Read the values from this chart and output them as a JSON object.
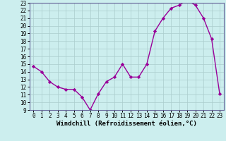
{
  "x": [
    0,
    1,
    2,
    3,
    4,
    5,
    6,
    7,
    8,
    9,
    10,
    11,
    12,
    13,
    14,
    15,
    16,
    17,
    18,
    19,
    20,
    21,
    22,
    23
  ],
  "y": [
    14.7,
    14.0,
    12.7,
    12.0,
    11.7,
    11.7,
    10.7,
    9.0,
    11.1,
    12.7,
    13.3,
    15.0,
    13.3,
    13.3,
    15.0,
    19.3,
    21.0,
    22.3,
    22.7,
    23.3,
    22.7,
    21.0,
    18.3,
    11.1
  ],
  "line_color": "#990099",
  "marker_color": "#990099",
  "bg_color": "#cceeee",
  "grid_color": "#aacccc",
  "xlabel": "Windchill (Refroidissement éolien,°C)",
  "ylim": [
    9,
    23
  ],
  "xlim": [
    -0.5,
    23.5
  ],
  "yticks": [
    9,
    10,
    11,
    12,
    13,
    14,
    15,
    16,
    17,
    18,
    19,
    20,
    21,
    22,
    23
  ],
  "xticks": [
    0,
    1,
    2,
    3,
    4,
    5,
    6,
    7,
    8,
    9,
    10,
    11,
    12,
    13,
    14,
    15,
    16,
    17,
    18,
    19,
    20,
    21,
    22,
    23
  ],
  "xlabel_fontsize": 6.5,
  "tick_fontsize": 5.5,
  "spine_color": "#666699",
  "line_width": 1.0,
  "marker_size": 2.2
}
